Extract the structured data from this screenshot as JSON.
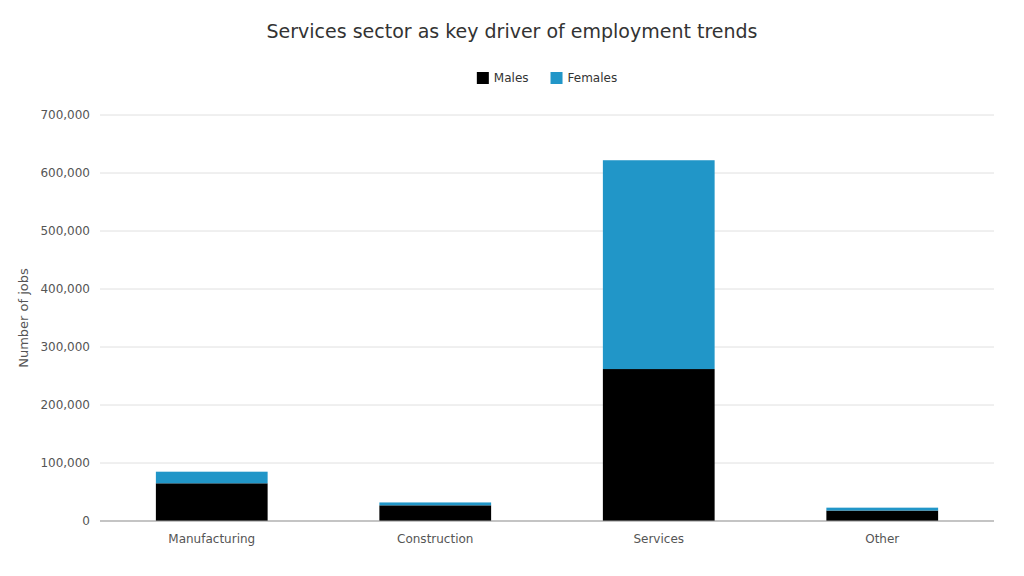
{
  "chart_data": {
    "type": "bar",
    "stacked": true,
    "title": "Services sector as key driver of employment trends",
    "ylabel": "Number of jobs",
    "categories": [
      "Manufacturing",
      "Construction",
      "Services",
      "Other"
    ],
    "series": [
      {
        "name": "Males",
        "color": "#000000",
        "values": [
          65000,
          27000,
          262000,
          18000
        ]
      },
      {
        "name": "Females",
        "color": "#2196C8",
        "values": [
          20000,
          5000,
          360000,
          5000
        ]
      }
    ],
    "ylim": [
      0,
      700000
    ],
    "yticks": [
      0,
      {
        "value": 100000,
        "label": "100,000"
      },
      {
        "value": 200000,
        "label": "200,000"
      },
      {
        "value": 300000,
        "label": "300,000"
      },
      {
        "value": 400000,
        "label": "400,000"
      },
      {
        "value": 500000,
        "label": "500,000"
      },
      {
        "value": 600000,
        "label": "600,000"
      },
      {
        "value": 700000,
        "label": "700,000"
      }
    ],
    "grid": true,
    "legend": "upper center"
  }
}
